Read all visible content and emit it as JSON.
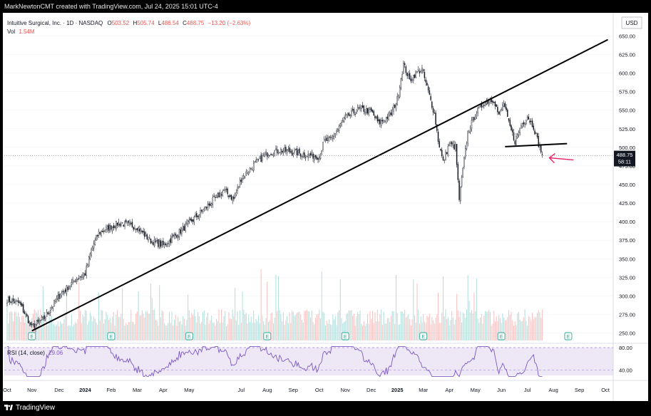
{
  "watermark": "MarkNewtonCMT created with TradingView.com, Jul 24, 2025 15:01 UTC-4",
  "footer_brand": "TradingView",
  "legend": {
    "symbol": "Intuitive Surgical, Inc. · 1D · NASDAQ",
    "o_label": "O",
    "o": "503.52",
    "h_label": "H",
    "h": "505.74",
    "l_label": "L",
    "l": "486.54",
    "c_label": "C",
    "c": "488.75",
    "change": "−13.20 (−2.63%)",
    "vol_label": "Vol",
    "vol": "1.54M"
  },
  "currency": "USD",
  "price_badge": {
    "price": "488.75",
    "countdown": "58:11"
  },
  "rsi_label": {
    "name": "RSI (14, close)",
    "value": "29.06"
  },
  "rsi_axis": {
    "upper": "80.00",
    "lower": "40.00"
  },
  "earnings_marker": "E",
  "colors": {
    "up": "#26a69a",
    "down": "#ef5350",
    "arrow": "#e91e63",
    "rsi": "#7e57c2",
    "trendline": "#000000"
  },
  "chart_data": {
    "type": "candlestick",
    "title": "",
    "y_unit": "USD",
    "price_range": [
      240,
      660
    ],
    "rsi_range": [
      25,
      85
    ],
    "y_ticks": [
      "650.00",
      "625.00",
      "600.00",
      "575.00",
      "550.00",
      "525.00",
      "500.00",
      "475.00",
      "450.00",
      "425.00",
      "400.00",
      "375.00",
      "350.00",
      "325.00",
      "300.00",
      "275.00",
      "250.00"
    ],
    "x_ticks": [
      "Oct",
      "Nov",
      "Dec",
      "2024",
      "Feb",
      "Mar",
      "Apr",
      "May",
      "Jul",
      "Aug",
      "Sep",
      "Oct",
      "Nov",
      "Dec",
      "2025",
      "Mar",
      "Apr",
      "May",
      "Jun",
      "Jul",
      "Aug",
      "Sep",
      "Oct"
    ],
    "x_tick_index": [
      0,
      20,
      42,
      63,
      84,
      105,
      126,
      147,
      189,
      210,
      231,
      252,
      273,
      294,
      315,
      336,
      357,
      378,
      399,
      420,
      441,
      462,
      483
    ],
    "anchors": [
      [
        0,
        295
      ],
      [
        10,
        290
      ],
      [
        20,
        258
      ],
      [
        30,
        270
      ],
      [
        42,
        300
      ],
      [
        55,
        322
      ],
      [
        63,
        330
      ],
      [
        68,
        362
      ],
      [
        74,
        385
      ],
      [
        80,
        390
      ],
      [
        90,
        398
      ],
      [
        105,
        393
      ],
      [
        115,
        375
      ],
      [
        126,
        368
      ],
      [
        135,
        380
      ],
      [
        147,
        398
      ],
      [
        160,
        418
      ],
      [
        175,
        442
      ],
      [
        183,
        430
      ],
      [
        189,
        458
      ],
      [
        200,
        478
      ],
      [
        210,
        492
      ],
      [
        220,
        496
      ],
      [
        231,
        494
      ],
      [
        240,
        490
      ],
      [
        252,
        488
      ],
      [
        256,
        508
      ],
      [
        262,
        512
      ],
      [
        273,
        540
      ],
      [
        285,
        552
      ],
      [
        294,
        548
      ],
      [
        300,
        532
      ],
      [
        310,
        545
      ],
      [
        315,
        565
      ],
      [
        320,
        612
      ],
      [
        325,
        590
      ],
      [
        330,
        600
      ],
      [
        335,
        605
      ],
      [
        340,
        575
      ],
      [
        345,
        545
      ],
      [
        348,
        510
      ],
      [
        352,
        480
      ],
      [
        357,
        505
      ],
      [
        362,
        500
      ],
      [
        365,
        430
      ],
      [
        368,
        470
      ],
      [
        372,
        520
      ],
      [
        378,
        545
      ],
      [
        385,
        560
      ],
      [
        393,
        565
      ],
      [
        397,
        542
      ],
      [
        401,
        560
      ],
      [
        405,
        532
      ],
      [
        410,
        508
      ],
      [
        415,
        530
      ],
      [
        420,
        542
      ],
      [
        425,
        528
      ],
      [
        429,
        505
      ],
      [
        432,
        490
      ]
    ],
    "volume_range": [
      0,
      5
    ],
    "earnings_index": [
      20,
      84,
      147,
      210,
      273,
      336,
      399,
      453
    ],
    "trendline_from": [
      20,
      253
    ],
    "trendline_to": [
      485,
      645
    ],
    "support_from": [
      402,
      501
    ],
    "support_to": [
      452,
      505
    ],
    "last_close": 488.75
  }
}
